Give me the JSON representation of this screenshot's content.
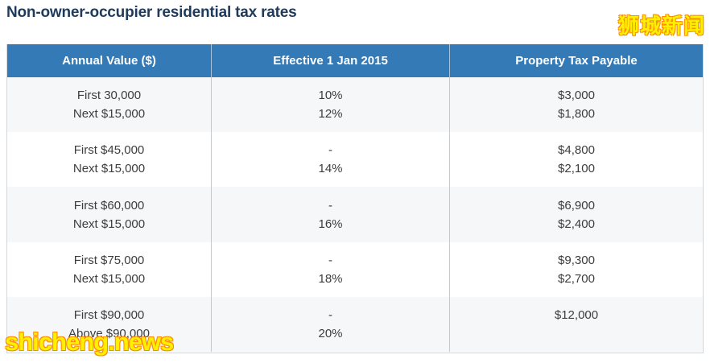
{
  "page": {
    "title": "Non-owner-occupier residential tax rates"
  },
  "watermarks": {
    "top_right": "狮城新闻",
    "bottom_left": "shicheng.news"
  },
  "colors": {
    "header_bg": "#337ab7",
    "header_text": "#ffffff",
    "title_text": "#1e3a5c",
    "body_text": "#3d3d3d",
    "row_alt_bg": "#f6f7f8",
    "row_bg": "#ffffff",
    "column_divider": "#c6c9cb",
    "table_border": "#d4d7d9",
    "watermark_fill": "#fff000",
    "watermark_outline": "#ff8a00"
  },
  "chart_data": {
    "type": "table",
    "title": "Non-owner-occupier residential tax rates",
    "columns": [
      "Annual Value ($)",
      "Effective 1 Jan 2015",
      "Property Tax Payable"
    ],
    "row_groups": [
      [
        [
          "First 30,000",
          "10%",
          "$3,000"
        ],
        [
          "Next $15,000",
          "12%",
          "$1,800"
        ]
      ],
      [
        [
          "First $45,000",
          "-",
          "$4,800"
        ],
        [
          "Next $15,000",
          "14%",
          "$2,100"
        ]
      ],
      [
        [
          "First $60,000",
          "-",
          "$6,900"
        ],
        [
          "Next $15,000",
          "16%",
          "$2,400"
        ]
      ],
      [
        [
          "First $75,000",
          "-",
          "$9,300"
        ],
        [
          "Next $15,000",
          "18%",
          "$2,700"
        ]
      ],
      [
        [
          "First $90,000",
          "-",
          "$12,000"
        ],
        [
          "Above $90,000",
          "20%",
          ""
        ]
      ]
    ]
  }
}
